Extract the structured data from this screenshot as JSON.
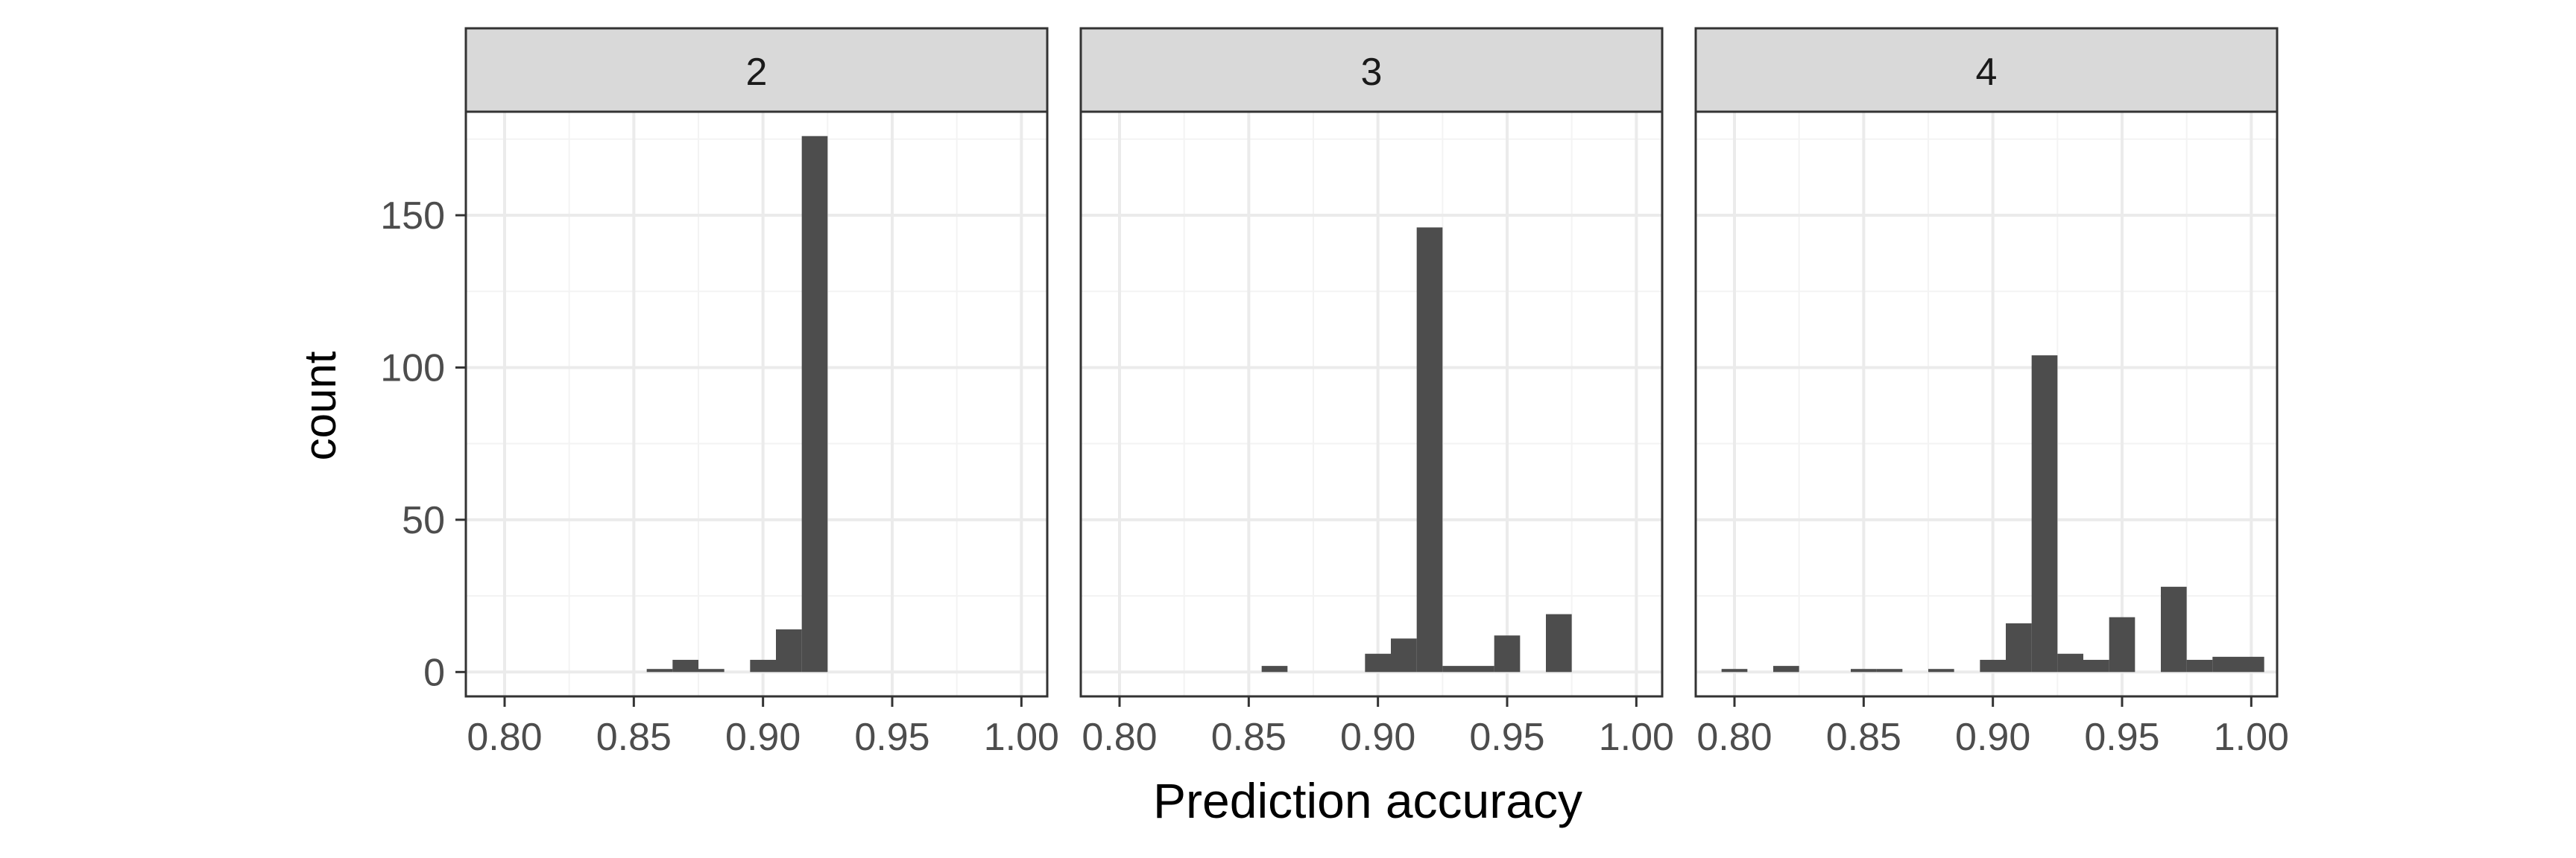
{
  "chart_data": {
    "type": "bar",
    "xlabel": "Prediction accuracy",
    "ylabel": "count",
    "xlim": [
      0.785,
      1.01
    ],
    "ylim": [
      -8,
      184
    ],
    "x_ticks": [
      "0.80",
      "0.85",
      "0.90",
      "0.95",
      "1.00"
    ],
    "y_ticks": [
      "0",
      "50",
      "100",
      "150"
    ],
    "bin_width": 0.01,
    "grid": true,
    "panels": [
      {
        "label": "2",
        "bins": [
          {
            "x": 0.86,
            "count": 1
          },
          {
            "x": 0.87,
            "count": 4
          },
          {
            "x": 0.88,
            "count": 1
          },
          {
            "x": 0.9,
            "count": 4
          },
          {
            "x": 0.91,
            "count": 14
          },
          {
            "x": 0.92,
            "count": 176
          }
        ]
      },
      {
        "label": "3",
        "bins": [
          {
            "x": 0.86,
            "count": 2
          },
          {
            "x": 0.9,
            "count": 6
          },
          {
            "x": 0.91,
            "count": 11
          },
          {
            "x": 0.92,
            "count": 146
          },
          {
            "x": 0.93,
            "count": 2
          },
          {
            "x": 0.94,
            "count": 2
          },
          {
            "x": 0.95,
            "count": 12
          },
          {
            "x": 0.97,
            "count": 19
          }
        ]
      },
      {
        "label": "4",
        "bins": [
          {
            "x": 0.8,
            "count": 1
          },
          {
            "x": 0.82,
            "count": 2
          },
          {
            "x": 0.85,
            "count": 1
          },
          {
            "x": 0.86,
            "count": 1
          },
          {
            "x": 0.88,
            "count": 1
          },
          {
            "x": 0.9,
            "count": 4
          },
          {
            "x": 0.91,
            "count": 16
          },
          {
            "x": 0.92,
            "count": 104
          },
          {
            "x": 0.93,
            "count": 6
          },
          {
            "x": 0.94,
            "count": 4
          },
          {
            "x": 0.95,
            "count": 18
          },
          {
            "x": 0.97,
            "count": 28
          },
          {
            "x": 0.98,
            "count": 4
          },
          {
            "x": 0.99,
            "count": 5
          },
          {
            "x": 1.0,
            "count": 5
          }
        ]
      }
    ],
    "colors": {
      "bar": "#4d4d4d",
      "strip_fill": "#d9d9d9",
      "grid_major": "#ebebeb",
      "grid_minor": "#f3f3f3",
      "border": "#333333",
      "text": "#4d4d4d",
      "title_text": "#000000"
    }
  }
}
